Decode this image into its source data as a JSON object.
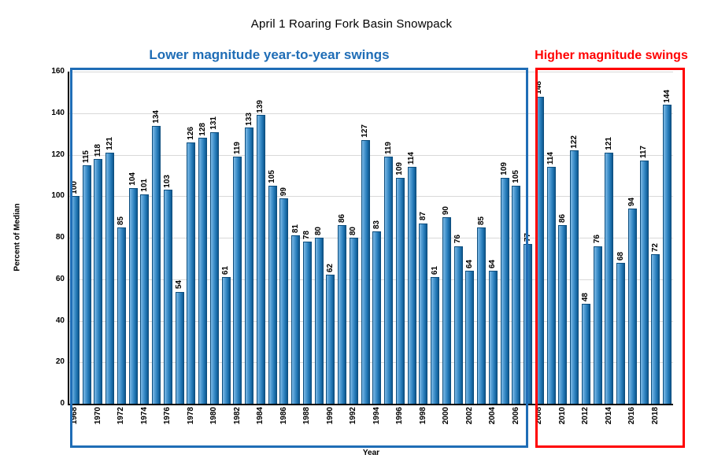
{
  "chart_data": {
    "type": "bar",
    "title": "April 1 Roaring Fork Basin Snowpack",
    "xlabel": "Year",
    "ylabel": "Percent of Median",
    "ylim": [
      0,
      160
    ],
    "ytick_interval": 20,
    "grid": "horizontal",
    "legend": "none",
    "bar_color": "#2f83c0",
    "years": [
      1968,
      1969,
      1970,
      1971,
      1972,
      1973,
      1974,
      1975,
      1976,
      1977,
      1978,
      1979,
      1980,
      1981,
      1982,
      1983,
      1984,
      1985,
      1986,
      1987,
      1988,
      1989,
      1990,
      1991,
      1992,
      1993,
      1994,
      1995,
      1996,
      1997,
      1998,
      1999,
      2000,
      2001,
      2002,
      2003,
      2004,
      2005,
      2006,
      2007,
      2008,
      2009,
      2010,
      2011,
      2012,
      2013,
      2014,
      2015,
      2016,
      2017,
      2018,
      2019
    ],
    "values": [
      100,
      115,
      118,
      121,
      85,
      104,
      101,
      134,
      103,
      54,
      126,
      128,
      131,
      61,
      119,
      133,
      139,
      105,
      99,
      81,
      78,
      80,
      62,
      86,
      80,
      127,
      83,
      119,
      109,
      114,
      87,
      61,
      90,
      76,
      64,
      85,
      64,
      109,
      105,
      77,
      148,
      114,
      86,
      122,
      48,
      76,
      121,
      68,
      94,
      117,
      72,
      144
    ]
  },
  "annotations": {
    "lower": {
      "text": "Lower magnitude year-to-year swings",
      "color": "#1f6db6"
    },
    "higher": {
      "text": "Higher magnitude swings",
      "color": "#ff0000"
    }
  }
}
